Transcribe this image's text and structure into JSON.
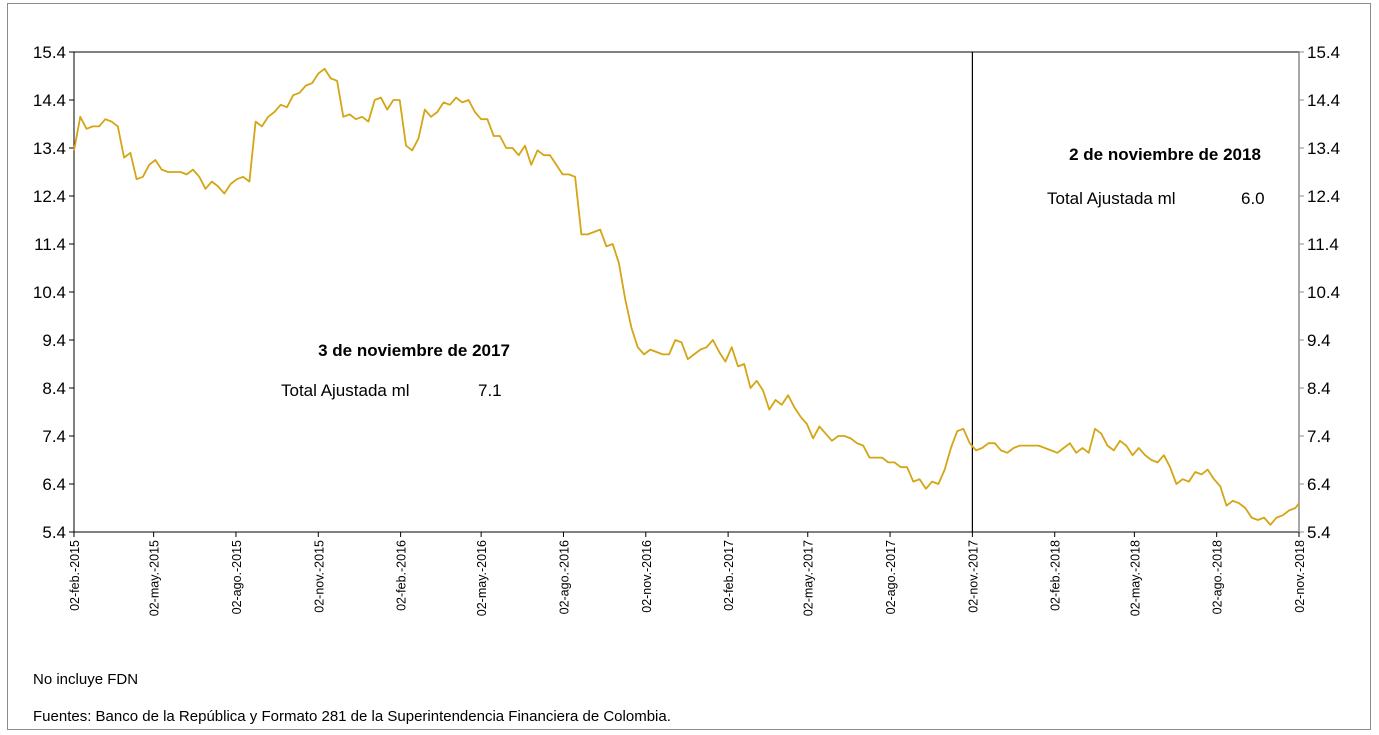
{
  "chart_data": {
    "type": "line",
    "title": "",
    "xlabel": "",
    "ylabel": "",
    "ylim": [
      5.4,
      15.4
    ],
    "y_ticks": [
      "15.4",
      "14.4",
      "13.4",
      "12.4",
      "11.4",
      "10.4",
      "9.4",
      "8.4",
      "7.4",
      "6.4",
      "5.4"
    ],
    "y_axis": "both sides",
    "x_ticks": [
      "02-feb.-2015",
      "02-may.-2015",
      "02-ago.-2015",
      "02-nov.-2015",
      "02-feb.-2016",
      "02-may.-2016",
      "02-ago.-2016",
      "02-nov.-2016",
      "02-feb.-2017",
      "02-may.-2017",
      "02-ago.-2017",
      "02-nov.-2017",
      "02-feb.-2018",
      "02-may.-2018",
      "02-ago.-2018",
      "02-nov.-2018"
    ],
    "x_range": [
      "02-feb.-2015",
      "02-nov.-2018"
    ],
    "grid": false,
    "line_color": "#d4a514",
    "marker_line": "02-nov.-2017",
    "series": [
      {
        "points": [
          [
            "2015-02-02",
            13.35
          ],
          [
            "2015-02-09",
            14.05
          ],
          [
            "2015-02-16",
            13.8
          ],
          [
            "2015-02-23",
            13.85
          ],
          [
            "2015-03-02",
            13.85
          ],
          [
            "2015-03-09",
            14.0
          ],
          [
            "2015-03-16",
            13.95
          ],
          [
            "2015-03-23",
            13.85
          ],
          [
            "2015-03-30",
            13.2
          ],
          [
            "2015-04-06",
            13.3
          ],
          [
            "2015-04-13",
            12.75
          ],
          [
            "2015-04-20",
            12.8
          ],
          [
            "2015-04-27",
            13.05
          ],
          [
            "2015-05-04",
            13.15
          ],
          [
            "2015-05-11",
            12.95
          ],
          [
            "2015-05-18",
            12.9
          ],
          [
            "2015-05-25",
            12.9
          ],
          [
            "2015-06-01",
            12.9
          ],
          [
            "2015-06-08",
            12.85
          ],
          [
            "2015-06-15",
            12.95
          ],
          [
            "2015-06-22",
            12.8
          ],
          [
            "2015-06-29",
            12.55
          ],
          [
            "2015-07-06",
            12.7
          ],
          [
            "2015-07-13",
            12.6
          ],
          [
            "2015-07-20",
            12.45
          ],
          [
            "2015-07-27",
            12.65
          ],
          [
            "2015-08-03",
            12.75
          ],
          [
            "2015-08-10",
            12.8
          ],
          [
            "2015-08-17",
            12.7
          ],
          [
            "2015-08-24",
            13.95
          ],
          [
            "2015-08-31",
            13.85
          ],
          [
            "2015-09-07",
            14.05
          ],
          [
            "2015-09-14",
            14.15
          ],
          [
            "2015-09-21",
            14.3
          ],
          [
            "2015-09-28",
            14.25
          ],
          [
            "2015-10-05",
            14.5
          ],
          [
            "2015-10-12",
            14.55
          ],
          [
            "2015-10-19",
            14.7
          ],
          [
            "2015-10-26",
            14.75
          ],
          [
            "2015-11-02",
            14.95
          ],
          [
            "2015-11-09",
            15.05
          ],
          [
            "2015-11-16",
            14.85
          ],
          [
            "2015-11-23",
            14.8
          ],
          [
            "2015-11-30",
            14.05
          ],
          [
            "2015-12-07",
            14.1
          ],
          [
            "2015-12-14",
            14.0
          ],
          [
            "2015-12-21",
            14.05
          ],
          [
            "2015-12-28",
            13.95
          ],
          [
            "2016-01-04",
            14.4
          ],
          [
            "2016-01-11",
            14.45
          ],
          [
            "2016-01-18",
            14.2
          ],
          [
            "2016-01-25",
            14.4
          ],
          [
            "2016-02-01",
            14.4
          ],
          [
            "2016-02-08",
            13.45
          ],
          [
            "2016-02-15",
            13.35
          ],
          [
            "2016-02-22",
            13.6
          ],
          [
            "2016-02-29",
            14.2
          ],
          [
            "2016-03-07",
            14.05
          ],
          [
            "2016-03-14",
            14.15
          ],
          [
            "2016-03-21",
            14.35
          ],
          [
            "2016-03-28",
            14.3
          ],
          [
            "2016-04-04",
            14.45
          ],
          [
            "2016-04-11",
            14.35
          ],
          [
            "2016-04-18",
            14.4
          ],
          [
            "2016-04-25",
            14.15
          ],
          [
            "2016-05-02",
            14.0
          ],
          [
            "2016-05-09",
            14.0
          ],
          [
            "2016-05-16",
            13.65
          ],
          [
            "2016-05-23",
            13.65
          ],
          [
            "2016-05-30",
            13.4
          ],
          [
            "2016-06-06",
            13.4
          ],
          [
            "2016-06-13",
            13.25
          ],
          [
            "2016-06-20",
            13.45
          ],
          [
            "2016-06-27",
            13.05
          ],
          [
            "2016-07-04",
            13.35
          ],
          [
            "2016-07-11",
            13.25
          ],
          [
            "2016-07-18",
            13.25
          ],
          [
            "2016-07-25",
            13.05
          ],
          [
            "2016-08-01",
            12.85
          ],
          [
            "2016-08-08",
            12.85
          ],
          [
            "2016-08-15",
            12.8
          ],
          [
            "2016-08-22",
            11.6
          ],
          [
            "2016-08-29",
            11.6
          ],
          [
            "2016-09-05",
            11.65
          ],
          [
            "2016-09-12",
            11.7
          ],
          [
            "2016-09-19",
            11.35
          ],
          [
            "2016-09-26",
            11.4
          ],
          [
            "2016-10-03",
            11.0
          ],
          [
            "2016-10-10",
            10.25
          ],
          [
            "2016-10-17",
            9.65
          ],
          [
            "2016-10-24",
            9.25
          ],
          [
            "2016-10-31",
            9.1
          ],
          [
            "2016-11-07",
            9.2
          ],
          [
            "2016-11-14",
            9.15
          ],
          [
            "2016-11-21",
            9.1
          ],
          [
            "2016-11-28",
            9.1
          ],
          [
            "2016-12-05",
            9.4
          ],
          [
            "2016-12-12",
            9.35
          ],
          [
            "2016-12-19",
            9.0
          ],
          [
            "2016-12-26",
            9.1
          ],
          [
            "2017-01-02",
            9.2
          ],
          [
            "2017-01-09",
            9.25
          ],
          [
            "2017-01-16",
            9.4
          ],
          [
            "2017-01-23",
            9.15
          ],
          [
            "2017-01-30",
            8.95
          ],
          [
            "2017-02-06",
            9.25
          ],
          [
            "2017-02-13",
            8.85
          ],
          [
            "2017-02-20",
            8.9
          ],
          [
            "2017-02-27",
            8.4
          ],
          [
            "2017-03-06",
            8.55
          ],
          [
            "2017-03-13",
            8.35
          ],
          [
            "2017-03-20",
            7.95
          ],
          [
            "2017-03-27",
            8.15
          ],
          [
            "2017-04-03",
            8.05
          ],
          [
            "2017-04-10",
            8.25
          ],
          [
            "2017-04-17",
            8.0
          ],
          [
            "2017-04-24",
            7.8
          ],
          [
            "2017-05-01",
            7.65
          ],
          [
            "2017-05-08",
            7.35
          ],
          [
            "2017-05-15",
            7.6
          ],
          [
            "2017-05-22",
            7.45
          ],
          [
            "2017-05-29",
            7.3
          ],
          [
            "2017-06-05",
            7.4
          ],
          [
            "2017-06-12",
            7.4
          ],
          [
            "2017-06-19",
            7.35
          ],
          [
            "2017-06-26",
            7.25
          ],
          [
            "2017-07-03",
            7.2
          ],
          [
            "2017-07-10",
            6.95
          ],
          [
            "2017-07-17",
            6.95
          ],
          [
            "2017-07-24",
            6.95
          ],
          [
            "2017-07-31",
            6.85
          ],
          [
            "2017-08-07",
            6.85
          ],
          [
            "2017-08-14",
            6.75
          ],
          [
            "2017-08-21",
            6.75
          ],
          [
            "2017-08-28",
            6.45
          ],
          [
            "2017-09-04",
            6.5
          ],
          [
            "2017-09-11",
            6.3
          ],
          [
            "2017-09-18",
            6.45
          ],
          [
            "2017-09-25",
            6.4
          ],
          [
            "2017-10-02",
            6.7
          ],
          [
            "2017-10-09",
            7.15
          ],
          [
            "2017-10-16",
            7.5
          ],
          [
            "2017-10-23",
            7.55
          ],
          [
            "2017-10-30",
            7.25
          ],
          [
            "2017-11-06",
            7.1
          ],
          [
            "2017-11-13",
            7.15
          ],
          [
            "2017-11-20",
            7.25
          ],
          [
            "2017-11-27",
            7.25
          ],
          [
            "2017-12-04",
            7.1
          ],
          [
            "2017-12-11",
            7.05
          ],
          [
            "2017-12-18",
            7.15
          ],
          [
            "2017-12-25",
            7.2
          ],
          [
            "2018-01-01",
            7.2
          ],
          [
            "2018-01-08",
            7.2
          ],
          [
            "2018-01-15",
            7.2
          ],
          [
            "2018-01-22",
            7.15
          ],
          [
            "2018-01-29",
            7.1
          ],
          [
            "2018-02-05",
            7.05
          ],
          [
            "2018-02-12",
            7.15
          ],
          [
            "2018-02-19",
            7.25
          ],
          [
            "2018-02-26",
            7.05
          ],
          [
            "2018-03-05",
            7.15
          ],
          [
            "2018-03-12",
            7.05
          ],
          [
            "2018-03-19",
            7.55
          ],
          [
            "2018-03-26",
            7.45
          ],
          [
            "2018-04-02",
            7.2
          ],
          [
            "2018-04-09",
            7.1
          ],
          [
            "2018-04-16",
            7.3
          ],
          [
            "2018-04-23",
            7.2
          ],
          [
            "2018-04-30",
            7.0
          ],
          [
            "2018-05-07",
            7.15
          ],
          [
            "2018-05-14",
            7.0
          ],
          [
            "2018-05-21",
            6.9
          ],
          [
            "2018-05-28",
            6.85
          ],
          [
            "2018-06-04",
            7.0
          ],
          [
            "2018-06-11",
            6.75
          ],
          [
            "2018-06-18",
            6.4
          ],
          [
            "2018-06-25",
            6.5
          ],
          [
            "2018-07-02",
            6.45
          ],
          [
            "2018-07-09",
            6.65
          ],
          [
            "2018-07-16",
            6.6
          ],
          [
            "2018-07-23",
            6.7
          ],
          [
            "2018-07-30",
            6.5
          ],
          [
            "2018-08-06",
            6.35
          ],
          [
            "2018-08-13",
            5.95
          ],
          [
            "2018-08-20",
            6.05
          ],
          [
            "2018-08-27",
            6.0
          ],
          [
            "2018-09-03",
            5.9
          ],
          [
            "2018-09-10",
            5.7
          ],
          [
            "2018-09-17",
            5.65
          ],
          [
            "2018-09-24",
            5.7
          ],
          [
            "2018-10-01",
            5.55
          ],
          [
            "2018-10-08",
            5.7
          ],
          [
            "2018-10-15",
            5.75
          ],
          [
            "2018-10-22",
            5.85
          ],
          [
            "2018-10-29",
            5.9
          ],
          [
            "2018-11-02",
            6.0
          ]
        ]
      }
    ],
    "annotations": [
      {
        "title": "3 de noviembre de 2017",
        "label": "Total Ajustada ml",
        "value": "7.1"
      },
      {
        "title": "2 de noviembre de 2018",
        "label": "Total Ajustada ml",
        "value": "6.0"
      }
    ]
  },
  "notes": {
    "exclusion": "No incluye FDN",
    "sources": "Fuentes: Banco de la República y Formato 281 de la Superintendencia Financiera de Colombia."
  }
}
